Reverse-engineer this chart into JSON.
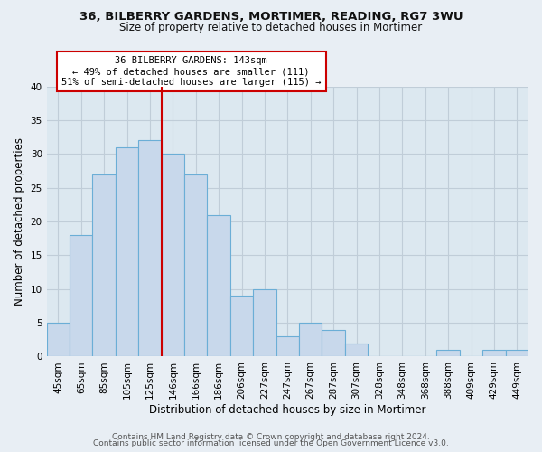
{
  "title1": "36, BILBERRY GARDENS, MORTIMER, READING, RG7 3WU",
  "title2": "Size of property relative to detached houses in Mortimer",
  "xlabel": "Distribution of detached houses by size in Mortimer",
  "ylabel": "Number of detached properties",
  "bar_labels": [
    "45sqm",
    "65sqm",
    "85sqm",
    "105sqm",
    "125sqm",
    "146sqm",
    "166sqm",
    "186sqm",
    "206sqm",
    "227sqm",
    "247sqm",
    "267sqm",
    "287sqm",
    "307sqm",
    "328sqm",
    "348sqm",
    "368sqm",
    "388sqm",
    "409sqm",
    "429sqm",
    "449sqm"
  ],
  "bar_heights": [
    5,
    18,
    27,
    31,
    32,
    30,
    27,
    21,
    9,
    10,
    3,
    5,
    4,
    2,
    0,
    0,
    0,
    1,
    0,
    1,
    1
  ],
  "bar_color": "#c8d8eb",
  "bar_edge_color": "#6baed6",
  "vline_x_index": 5,
  "vline_color": "#cc0000",
  "annotation_title": "36 BILBERRY GARDENS: 143sqm",
  "annotation_line1": "← 49% of detached houses are smaller (111)",
  "annotation_line2": "51% of semi-detached houses are larger (115) →",
  "annotation_box_color": "#ffffff",
  "annotation_box_edge": "#cc0000",
  "ylim": [
    0,
    40
  ],
  "yticks": [
    0,
    5,
    10,
    15,
    20,
    25,
    30,
    35,
    40
  ],
  "footer1": "Contains HM Land Registry data © Crown copyright and database right 2024.",
  "footer2": "Contains public sector information licensed under the Open Government Licence v3.0.",
  "bg_color": "#e8eef4",
  "plot_bg_color": "#dce8f0",
  "grid_color": "#c0cdd8",
  "title1_fontsize": 9.5,
  "title2_fontsize": 8.5,
  "xlabel_fontsize": 8.5,
  "ylabel_fontsize": 8.5,
  "tick_fontsize": 7.5,
  "ann_fontsize": 7.5,
  "footer_fontsize": 6.5
}
